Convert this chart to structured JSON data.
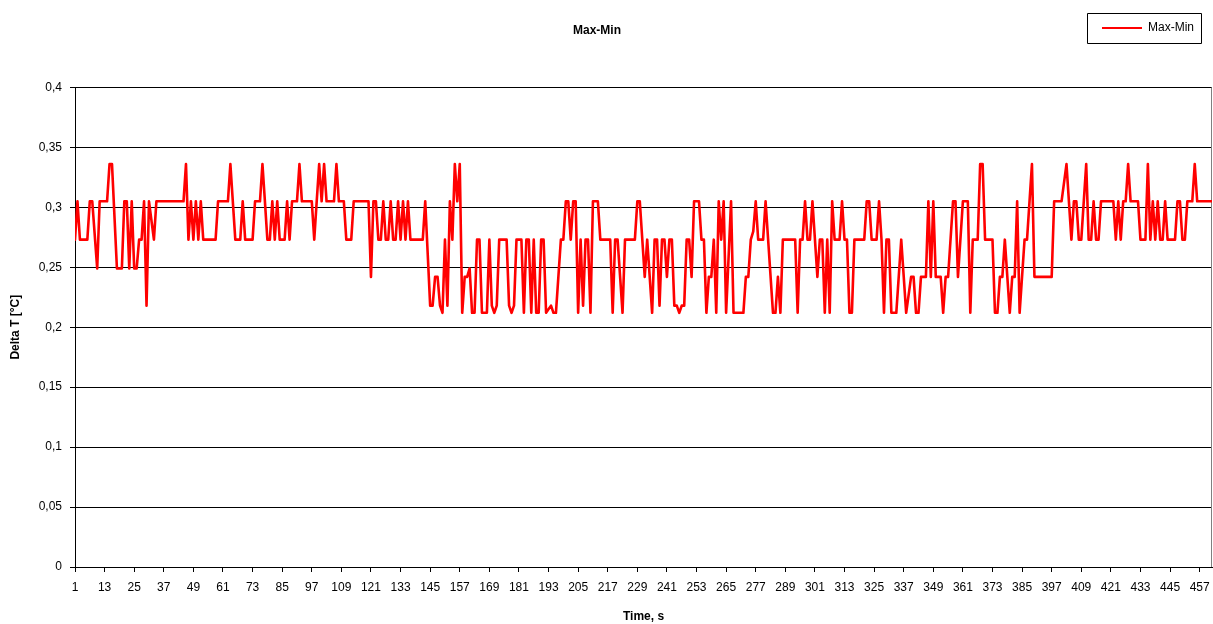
{
  "chart_data": {
    "type": "line",
    "title": "Max-Min",
    "xlabel": "Time, s",
    "ylabel": "Delta T [°C]",
    "x": [
      1,
      2,
      3,
      6,
      7,
      8,
      10,
      11,
      14,
      15,
      16,
      18,
      20,
      21,
      22,
      23,
      24,
      25,
      26,
      27,
      28,
      29,
      30,
      31,
      33,
      34,
      45,
      46,
      47,
      48,
      49,
      50,
      51,
      52,
      53,
      58,
      59,
      63,
      64,
      66,
      68,
      69,
      70,
      73,
      74,
      76,
      77,
      78,
      79,
      80,
      81,
      82,
      83,
      84,
      86,
      87,
      88,
      89,
      91,
      92,
      93,
      97,
      98,
      99,
      100,
      101,
      102,
      103,
      106,
      107,
      108,
      110,
      111,
      113,
      114,
      115,
      120,
      121,
      122,
      123,
      124,
      125,
      126,
      127,
      128,
      129,
      130,
      131,
      132,
      133,
      134,
      135,
      136,
      137,
      142,
      143,
      145,
      146,
      147,
      148,
      149,
      150,
      151,
      152,
      153,
      154,
      155,
      156,
      157,
      158,
      159,
      160,
      161,
      162,
      163,
      164,
      165,
      166,
      168,
      169,
      170,
      171,
      172,
      173,
      176,
      177,
      178,
      179,
      180,
      182,
      183,
      184,
      185,
      186,
      187,
      188,
      189,
      190,
      191,
      192,
      194,
      195,
      196,
      198,
      199,
      200,
      201,
      202,
      203,
      204,
      205,
      206,
      207,
      208,
      209,
      210,
      211,
      213,
      214,
      218,
      219,
      220,
      221,
      223,
      224,
      228,
      229,
      230,
      232,
      233,
      235,
      236,
      237,
      238,
      239,
      240,
      241,
      242,
      243,
      244,
      245,
      246,
      247,
      248,
      249,
      250,
      251,
      252,
      254,
      255,
      256,
      257,
      258,
      259,
      260,
      261,
      262,
      263,
      264,
      265,
      267,
      268,
      272,
      273,
      274,
      275,
      276,
      277,
      278,
      280,
      281,
      284,
      285,
      286,
      287,
      288,
      293,
      294,
      295,
      296,
      297,
      298,
      299,
      300,
      302,
      303,
      304,
      305,
      306,
      307,
      308,
      309,
      311,
      312,
      313,
      314,
      315,
      316,
      317,
      321,
      322,
      323,
      324,
      326,
      327,
      328,
      329,
      330,
      331,
      332,
      334,
      336,
      338,
      340,
      341,
      342,
      343,
      344,
      346,
      347,
      348,
      349,
      350,
      352,
      353,
      354,
      355,
      357,
      358,
      359,
      361,
      363,
      364,
      365,
      367,
      368,
      369,
      370,
      373,
      374,
      375,
      376,
      377,
      378,
      380,
      381,
      382,
      383,
      384,
      386,
      387,
      389,
      390,
      397,
      398,
      401,
      403,
      405,
      406,
      407,
      408,
      409,
      411,
      412,
      413,
      414,
      415,
      416,
      417,
      422,
      423,
      424,
      425,
      426,
      427,
      428,
      429,
      432,
      433,
      435,
      436,
      437,
      438,
      439,
      440,
      441,
      442,
      443,
      444,
      447,
      448,
      449,
      450,
      451,
      452,
      454,
      455,
      456,
      462
    ],
    "series": [
      {
        "name": "Max-Min",
        "color": "#ff0000",
        "values": [
          0.273,
          0.305,
          0.273,
          0.273,
          0.305,
          0.305,
          0.249,
          0.305,
          0.305,
          0.336,
          0.336,
          0.249,
          0.249,
          0.305,
          0.305,
          0.249,
          0.305,
          0.249,
          0.249,
          0.273,
          0.273,
          0.305,
          0.218,
          0.305,
          0.273,
          0.305,
          0.305,
          0.336,
          0.273,
          0.305,
          0.273,
          0.305,
          0.273,
          0.305,
          0.273,
          0.273,
          0.305,
          0.305,
          0.336,
          0.273,
          0.273,
          0.305,
          0.273,
          0.273,
          0.305,
          0.305,
          0.336,
          0.305,
          0.273,
          0.273,
          0.305,
          0.273,
          0.305,
          0.273,
          0.273,
          0.305,
          0.273,
          0.305,
          0.305,
          0.336,
          0.305,
          0.305,
          0.273,
          0.305,
          0.336,
          0.305,
          0.336,
          0.305,
          0.305,
          0.336,
          0.305,
          0.305,
          0.273,
          0.273,
          0.305,
          0.305,
          0.305,
          0.242,
          0.305,
          0.305,
          0.273,
          0.273,
          0.305,
          0.273,
          0.273,
          0.305,
          0.273,
          0.273,
          0.305,
          0.273,
          0.305,
          0.273,
          0.305,
          0.273,
          0.273,
          0.305,
          0.218,
          0.218,
          0.242,
          0.242,
          0.218,
          0.212,
          0.273,
          0.218,
          0.305,
          0.273,
          0.336,
          0.305,
          0.336,
          0.212,
          0.242,
          0.242,
          0.249,
          0.212,
          0.212,
          0.273,
          0.273,
          0.212,
          0.212,
          0.273,
          0.218,
          0.212,
          0.218,
          0.273,
          0.273,
          0.218,
          0.212,
          0.218,
          0.273,
          0.273,
          0.212,
          0.273,
          0.273,
          0.212,
          0.273,
          0.212,
          0.212,
          0.273,
          0.273,
          0.212,
          0.218,
          0.212,
          0.212,
          0.273,
          0.273,
          0.305,
          0.305,
          0.273,
          0.305,
          0.305,
          0.212,
          0.273,
          0.218,
          0.273,
          0.273,
          0.212,
          0.305,
          0.305,
          0.273,
          0.273,
          0.212,
          0.273,
          0.273,
          0.212,
          0.273,
          0.273,
          0.305,
          0.305,
          0.242,
          0.273,
          0.212,
          0.273,
          0.273,
          0.218,
          0.273,
          0.273,
          0.242,
          0.273,
          0.273,
          0.218,
          0.218,
          0.212,
          0.218,
          0.218,
          0.273,
          0.273,
          0.242,
          0.305,
          0.305,
          0.273,
          0.273,
          0.212,
          0.242,
          0.242,
          0.273,
          0.212,
          0.305,
          0.273,
          0.305,
          0.212,
          0.305,
          0.212,
          0.212,
          0.242,
          0.242,
          0.273,
          0.28,
          0.305,
          0.273,
          0.273,
          0.305,
          0.212,
          0.212,
          0.242,
          0.212,
          0.273,
          0.273,
          0.212,
          0.273,
          0.273,
          0.305,
          0.273,
          0.273,
          0.305,
          0.242,
          0.273,
          0.273,
          0.212,
          0.273,
          0.212,
          0.305,
          0.273,
          0.273,
          0.305,
          0.273,
          0.273,
          0.212,
          0.212,
          0.273,
          0.273,
          0.305,
          0.305,
          0.273,
          0.273,
          0.305,
          0.273,
          0.212,
          0.273,
          0.273,
          0.212,
          0.212,
          0.273,
          0.212,
          0.242,
          0.242,
          0.212,
          0.212,
          0.242,
          0.242,
          0.305,
          0.242,
          0.305,
          0.242,
          0.242,
          0.212,
          0.242,
          0.242,
          0.305,
          0.305,
          0.242,
          0.305,
          0.305,
          0.212,
          0.273,
          0.273,
          0.336,
          0.336,
          0.273,
          0.273,
          0.212,
          0.212,
          0.242,
          0.242,
          0.273,
          0.212,
          0.242,
          0.242,
          0.305,
          0.212,
          0.273,
          0.273,
          0.336,
          0.242,
          0.242,
          0.305,
          0.305,
          0.336,
          0.273,
          0.305,
          0.305,
          0.273,
          0.273,
          0.336,
          0.273,
          0.273,
          0.305,
          0.273,
          0.273,
          0.305,
          0.305,
          0.273,
          0.305,
          0.273,
          0.305,
          0.305,
          0.336,
          0.305,
          0.305,
          0.273,
          0.273,
          0.336,
          0.273,
          0.305,
          0.273,
          0.305,
          0.273,
          0.273,
          0.305,
          0.273,
          0.273,
          0.305,
          0.305,
          0.273,
          0.273,
          0.305,
          0.305,
          0.336,
          0.305,
          0.305
        ]
      }
    ],
    "xlim": [
      1,
      462
    ],
    "xticks": [
      1,
      13,
      25,
      37,
      49,
      61,
      73,
      85,
      97,
      109,
      121,
      133,
      145,
      157,
      169,
      181,
      193,
      205,
      217,
      229,
      241,
      253,
      265,
      277,
      289,
      301,
      313,
      325,
      337,
      349,
      361,
      373,
      385,
      397,
      409,
      421,
      433,
      445,
      457
    ],
    "ylim": [
      0,
      0.4
    ],
    "yticks": [
      0,
      {
        "value": 0.05,
        "label": "0,05"
      },
      {
        "value": 0.1,
        "label": "0,1"
      },
      {
        "value": 0.15,
        "label": "0,15"
      },
      {
        "value": 0.2,
        "label": "0,2"
      },
      {
        "value": 0.25,
        "label": "0,25"
      },
      {
        "value": 0.3,
        "label": "0,3"
      },
      {
        "value": 0.35,
        "label": "0,35"
      },
      {
        "value": 0.4,
        "label": "0,4"
      }
    ],
    "grid": "y",
    "legend": "top right",
    "marker": "none",
    "line_style": "solid"
  }
}
